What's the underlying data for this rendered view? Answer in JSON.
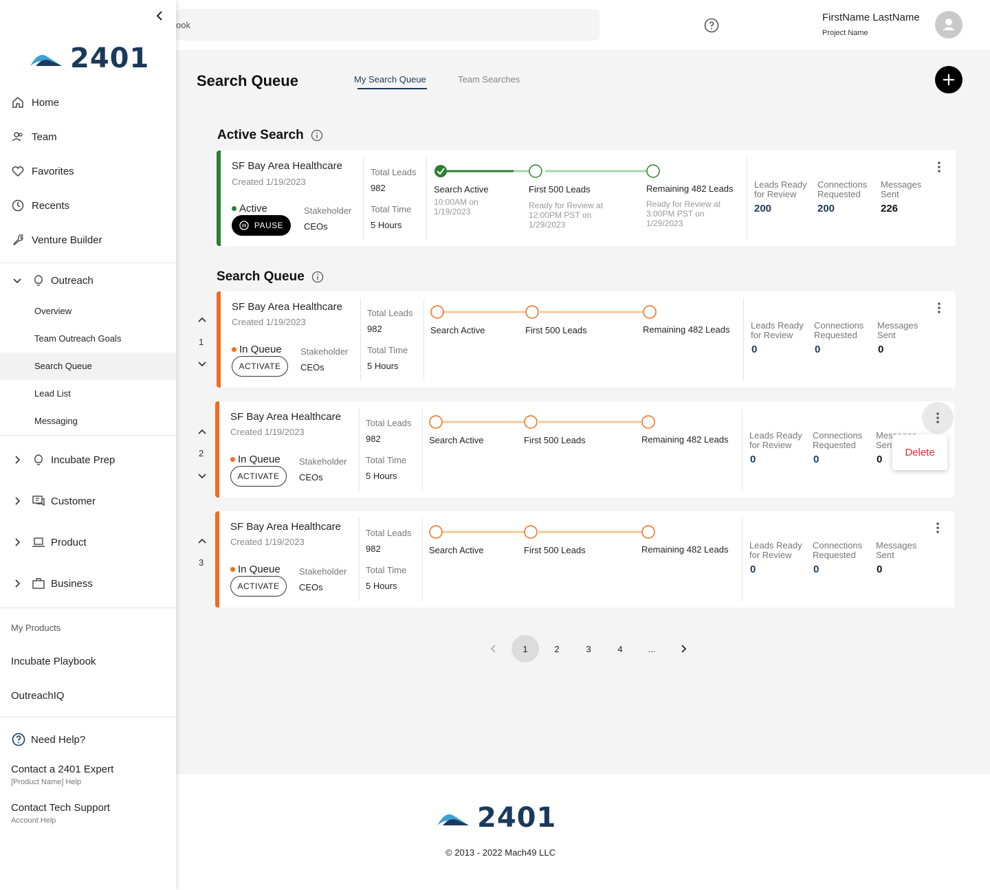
{
  "brand": {
    "logo_text": "2401",
    "accent": "#1b3a5b",
    "logo_blue": "#3ea0d6"
  },
  "sidebar": {
    "nav": [
      {
        "label": "Home",
        "icon": "home-icon"
      },
      {
        "label": "Team",
        "icon": "team-icon"
      },
      {
        "label": "Favorites",
        "icon": "heart-icon"
      },
      {
        "label": "Recents",
        "icon": "clock-icon"
      },
      {
        "label": "Venture Builder",
        "icon": "wrench-icon"
      }
    ],
    "outreach": {
      "label": "Outreach",
      "items": [
        "Overview",
        "Team Outreach Goals",
        "Search Queue",
        "Lead List",
        "Messaging"
      ]
    },
    "groups": [
      {
        "label": "Incubate Prep",
        "icon": "lightbulb-icon"
      },
      {
        "label": "Customer",
        "icon": "chat-icon"
      },
      {
        "label": "Product",
        "icon": "laptop-icon"
      },
      {
        "label": "Business",
        "icon": "briefcase-icon"
      }
    ],
    "my_products_label": "My Products",
    "products": [
      "Incubate Playbook",
      "OutreachIQ"
    ],
    "need_help": "Need Help?",
    "contact_expert": "Contact a 2401 Expert",
    "contact_expert_sub": "[Product Name] Help",
    "contact_support": "Contact Tech Support",
    "contact_support_sub": "Account Help"
  },
  "header": {
    "search_value": "ook",
    "user_name": "FirstName LastName",
    "project_name": "Project Name"
  },
  "main": {
    "page_title": "Search Queue",
    "tabs": [
      "My Search Queue",
      "Team Searches"
    ],
    "active_section_title": "Active Search",
    "queue_section_title": "Search Queue",
    "active_card": {
      "title": "SF Bay Area Healthcare",
      "created": "Created 1/19/2023",
      "status": "Active",
      "button": "PAUSE",
      "stakeholder_label": "Stakeholder",
      "stakeholder_value": "CEOs",
      "total_leads_label": "Total Leads",
      "total_leads": "982",
      "total_time_label": "Total Time",
      "total_time": "5 Hours",
      "steps": [
        {
          "label": "Search Active",
          "sub1": "10:00AM on",
          "sub2": "1/19/2023",
          "sub3": ""
        },
        {
          "label": "First 500 Leads",
          "sub1": "Ready for Review at",
          "sub2": "12:00PM PST on",
          "sub3": "1/29/2023"
        },
        {
          "label": "Remaining 482 Leads",
          "sub1": "Ready for Review at",
          "sub2": "3:00PM PST on",
          "sub3": "1/29/2023"
        }
      ],
      "metrics": [
        {
          "l1": "Leads Ready",
          "l2": "for Review",
          "value": "200"
        },
        {
          "l1": "Connections",
          "l2": "Requested",
          "value": "200"
        },
        {
          "l1": "Messages",
          "l2": "Sent",
          "value": "226"
        }
      ]
    },
    "queue_cards": [
      {
        "order": "1",
        "title": "SF Bay Area Healthcare",
        "created": "Created 1/19/2023",
        "status": "In Queue",
        "button": "ACTIVATE",
        "stakeholder_label": "Stakeholder",
        "stakeholder_value": "CEOs",
        "total_leads_label": "Total Leads",
        "total_leads": "982",
        "total_time_label": "Total Time",
        "total_time": "5 Hours",
        "steps": [
          "Search Active",
          "First 500 Leads",
          "Remaining 482 Leads"
        ],
        "metrics": [
          {
            "l1": "Leads Ready",
            "l2": "for Review",
            "value": "0"
          },
          {
            "l1": "Connections",
            "l2": "Requested",
            "value": "0"
          },
          {
            "l1": "Messages",
            "l2": "Sent",
            "value": "0"
          }
        ]
      },
      {
        "order": "2",
        "title": "SF Bay Area Healthcare",
        "created": "Created 1/19/2023",
        "status": "In Queue",
        "button": "ACTIVATE",
        "stakeholder_label": "Stakeholder",
        "stakeholder_value": "CEOs",
        "total_leads_label": "Total Leads",
        "total_leads": "982",
        "total_time_label": "Total Time",
        "total_time": "5 Hours",
        "steps": [
          "Search Active",
          "First 500 Leads",
          "Remaining 482 Leads"
        ],
        "metrics": [
          {
            "l1": "Leads Ready",
            "l2": "for Review",
            "value": "0"
          },
          {
            "l1": "Connections",
            "l2": "Requested",
            "value": "0"
          },
          {
            "l1": "Messages",
            "l2": "Sent",
            "value": "0"
          }
        ]
      },
      {
        "order": "3",
        "title": "SF Bay Area Healthcare",
        "created": "Created 1/19/2023",
        "status": "In Queue",
        "button": "ACTIVATE",
        "stakeholder_label": "Stakeholder",
        "stakeholder_value": "CEOs",
        "total_leads_label": "Total Leads",
        "total_leads": "982",
        "total_time_label": "Total Time",
        "total_time": "5 Hours",
        "steps": [
          "Search Active",
          "First 500 Leads",
          "Remaining 482 Leads"
        ],
        "metrics": [
          {
            "l1": "Leads Ready",
            "l2": "for Review",
            "value": "0"
          },
          {
            "l1": "Connections",
            "l2": "Requested",
            "value": "0"
          },
          {
            "l1": "Messages",
            "l2": "Sent",
            "value": "0"
          }
        ]
      }
    ],
    "context_menu": {
      "delete_label": "Delete"
    },
    "pagination": {
      "pages": [
        "1",
        "2",
        "3",
        "4",
        "..."
      ],
      "current": "1"
    }
  },
  "footer": {
    "logo_text": "2401",
    "copyright": "© 2013 - 2022 Mach49 LLC"
  },
  "colors": {
    "active_green": "#2e7d32",
    "queue_orange": "#f26c1d",
    "delete_red": "#d32f2f"
  }
}
